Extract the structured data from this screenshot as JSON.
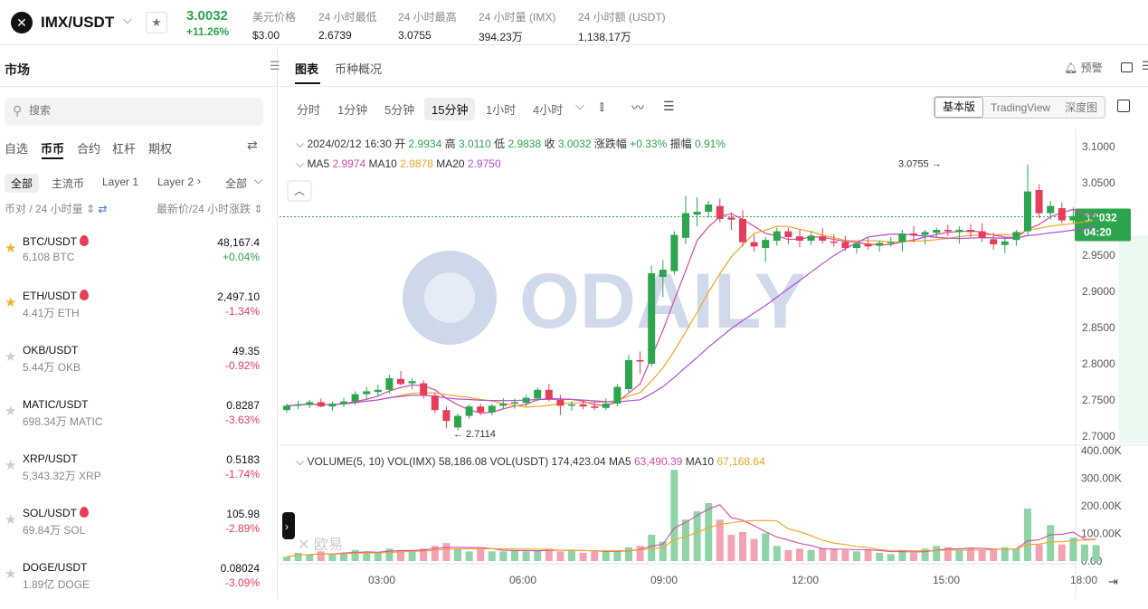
{
  "header": {
    "logo_text": "✕",
    "pair": "IMX/USDT",
    "last_price": "3.0032",
    "change_pct": "+11.26%",
    "stats": [
      {
        "key": "美元价格",
        "value": "$3.00"
      },
      {
        "key": "24 小时最低",
        "value": "2.6739"
      },
      {
        "key": "24 小时最高",
        "value": "3.0755"
      },
      {
        "key": "24 小时量 (IMX)",
        "value": "394.23万"
      },
      {
        "key": "24 小时额 (USDT)",
        "value": "1,138.17万"
      }
    ],
    "colors": {
      "up": "#2da44e",
      "down": "#e53e5a"
    }
  },
  "sidebar": {
    "title": "市场",
    "search_placeholder": "搜索",
    "categories": [
      "自选",
      "币币",
      "合约",
      "杠杆",
      "期权"
    ],
    "active_category": "币币",
    "filters": [
      "全部",
      "主流币",
      "Layer 1",
      "Layer 2"
    ],
    "filter_dropdown": "全部",
    "col_left": "币对 / 24 小时量",
    "col_right": "最新价/24 小时涨跌",
    "rows": [
      {
        "pair": "BTC/USDT",
        "hot": true,
        "favorite": true,
        "volume": "6,108 BTC",
        "price": "48,167.4",
        "change": "+0.04%",
        "dir": "up"
      },
      {
        "pair": "ETH/USDT",
        "hot": true,
        "favorite": true,
        "volume": "4.41万 ETH",
        "price": "2,497.10",
        "change": "-1.34%",
        "dir": "down"
      },
      {
        "pair": "OKB/USDT",
        "hot": false,
        "favorite": false,
        "volume": "5.44万 OKB",
        "price": "49.35",
        "change": "-0.92%",
        "dir": "down"
      },
      {
        "pair": "MATIC/USDT",
        "hot": false,
        "favorite": false,
        "volume": "698.34万 MATIC",
        "price": "0.8287",
        "change": "-3.63%",
        "dir": "down"
      },
      {
        "pair": "XRP/USDT",
        "hot": false,
        "favorite": false,
        "volume": "5,343.32万 XRP",
        "price": "0.5183",
        "change": "-1.74%",
        "dir": "down"
      },
      {
        "pair": "SOL/USDT",
        "hot": true,
        "favorite": false,
        "volume": "69.84万 SOL",
        "price": "105.98",
        "change": "-2.89%",
        "dir": "down"
      },
      {
        "pair": "DOGE/USDT",
        "hot": false,
        "favorite": false,
        "volume": "1.89亿 DOGE",
        "price": "0.08024",
        "change": "-3.09%",
        "dir": "down"
      }
    ]
  },
  "main": {
    "tabs": [
      "图表",
      "币种概况"
    ],
    "alert_label": "预警",
    "timeframes": [
      "分时",
      "1分钟",
      "5分钟",
      "15分钟",
      "1小时",
      "4小时"
    ],
    "active_timeframe": "15分钟",
    "views": [
      "基本版",
      "TradingView",
      "深度图"
    ],
    "active_view": "基本版"
  },
  "chart_data": {
    "type": "candlestick",
    "ohlc_info": {
      "date": "2024/02/12 16:30",
      "open_label": "开",
      "open": "2.9934",
      "high_label": "高",
      "high": "3.0110",
      "low_label": "低",
      "low": "2.9838",
      "close_label": "收",
      "close": "3.0032",
      "change_label": "涨跌幅",
      "change": "+0.33%",
      "amplitude_label": "振幅",
      "amplitude": "0.91%"
    },
    "ma_info": {
      "ma5_label": "MA5",
      "ma5": "2.9974",
      "ma10_label": "MA10",
      "ma10": "2.9878",
      "ma20_label": "MA20",
      "ma20": "2.9750"
    },
    "volume_info": {
      "title": "VOLUME(5, 10)",
      "vol_imx_label": "VOL(IMX)",
      "vol_imx": "58,186.08",
      "vol_usdt_label": "VOL(USDT)",
      "vol_usdt": "174,423.04",
      "ma5_label": "MA5",
      "ma5": "63,490.39",
      "ma10_label": "MA10",
      "ma10": "67,168.64"
    },
    "price_axis": [
      "3.1000",
      "3.0500",
      "3.0000",
      "2.9500",
      "2.9000",
      "2.8500",
      "2.8000",
      "2.7500",
      "2.7000"
    ],
    "price_range": [
      2.69,
      3.125
    ],
    "volume_axis": [
      "400.00K",
      "300.00K",
      "200.00K",
      "100.00K",
      "0.00"
    ],
    "volume_max": 400000,
    "time_axis": [
      "03:00",
      "06:00",
      "09:00",
      "12:00",
      "15:00",
      "18:00"
    ],
    "current_price_tag": "3.0032",
    "countdown": "04:20",
    "high_marker": "3.0755",
    "low_marker": "2.7114",
    "candles": [
      [
        2.736,
        2.745,
        2.732,
        2.742
      ],
      [
        2.742,
        2.749,
        2.737,
        2.744
      ],
      [
        2.743,
        2.75,
        2.739,
        2.747
      ],
      [
        2.747,
        2.752,
        2.74,
        2.741
      ],
      [
        2.741,
        2.748,
        2.735,
        2.745
      ],
      [
        2.745,
        2.753,
        2.74,
        2.748
      ],
      [
        2.748,
        2.762,
        2.743,
        2.758
      ],
      [
        2.758,
        2.768,
        2.751,
        2.762
      ],
      [
        2.761,
        2.771,
        2.755,
        2.764
      ],
      [
        2.764,
        2.785,
        2.759,
        2.78
      ],
      [
        2.779,
        2.79,
        2.77,
        2.772
      ],
      [
        2.773,
        2.78,
        2.765,
        2.776
      ],
      [
        2.773,
        2.777,
        2.752,
        2.756
      ],
      [
        2.756,
        2.76,
        2.732,
        2.736
      ],
      [
        2.736,
        2.741,
        2.711,
        2.721
      ],
      [
        2.712,
        2.731,
        2.708,
        2.728
      ],
      [
        2.728,
        2.744,
        2.724,
        2.741
      ],
      [
        2.741,
        2.745,
        2.729,
        2.733
      ],
      [
        2.733,
        2.745,
        2.729,
        2.742
      ],
      [
        2.742,
        2.752,
        2.737,
        2.745
      ],
      [
        2.745,
        2.752,
        2.738,
        2.747
      ],
      [
        2.746,
        2.757,
        2.741,
        2.753
      ],
      [
        2.752,
        2.767,
        2.748,
        2.764
      ],
      [
        2.764,
        2.772,
        2.748,
        2.751
      ],
      [
        2.75,
        2.757,
        2.729,
        2.742
      ],
      [
        2.742,
        2.748,
        2.735,
        2.744
      ],
      [
        2.744,
        2.75,
        2.737,
        2.741
      ],
      [
        2.741,
        2.748,
        2.736,
        2.739
      ],
      [
        2.739,
        2.752,
        2.736,
        2.745
      ],
      [
        2.745,
        2.772,
        2.741,
        2.768
      ],
      [
        2.765,
        2.812,
        2.761,
        2.805
      ],
      [
        2.805,
        2.817,
        2.786,
        2.803
      ],
      [
        2.8,
        2.935,
        2.796,
        2.925
      ],
      [
        2.92,
        2.943,
        2.892,
        2.93
      ],
      [
        2.928,
        2.983,
        2.923,
        2.978
      ],
      [
        2.974,
        3.032,
        2.965,
        3.008
      ],
      [
        3.006,
        3.03,
        2.99,
        3.01
      ],
      [
        3.01,
        3.025,
        3.002,
        3.02
      ],
      [
        3.018,
        3.028,
        2.995,
        3.0
      ],
      [
        3.002,
        3.009,
        2.985,
        2.999
      ],
      [
        3.0,
        3.012,
        2.962,
        2.968
      ],
      [
        2.968,
        2.978,
        2.955,
        2.962
      ],
      [
        2.96,
        2.975,
        2.941,
        2.971
      ],
      [
        2.97,
        2.988,
        2.963,
        2.983
      ],
      [
        2.983,
        2.988,
        2.965,
        2.975
      ],
      [
        2.976,
        2.985,
        2.961,
        2.97
      ],
      [
        2.97,
        2.983,
        2.964,
        2.977
      ],
      [
        2.976,
        2.988,
        2.966,
        2.97
      ],
      [
        2.969,
        2.979,
        2.962,
        2.967
      ],
      [
        2.968,
        2.977,
        2.956,
        2.96
      ],
      [
        2.96,
        2.968,
        2.952,
        2.966
      ],
      [
        2.966,
        2.974,
        2.958,
        2.962
      ],
      [
        2.963,
        2.97,
        2.955,
        2.967
      ],
      [
        2.966,
        2.975,
        2.962,
        2.968
      ],
      [
        2.968,
        2.985,
        2.955,
        2.98
      ],
      [
        2.98,
        2.99,
        2.968,
        2.978
      ],
      [
        2.978,
        2.985,
        2.965,
        2.982
      ],
      [
        2.981,
        2.988,
        2.974,
        2.985
      ],
      [
        2.985,
        2.992,
        2.976,
        2.983
      ],
      [
        2.982,
        2.99,
        2.966,
        2.985
      ],
      [
        2.985,
        2.993,
        2.975,
        2.982
      ],
      [
        2.983,
        2.994,
        2.968,
        2.974
      ],
      [
        2.972,
        2.981,
        2.958,
        2.965
      ],
      [
        2.964,
        2.975,
        2.953,
        2.969
      ],
      [
        2.971,
        2.985,
        2.963,
        2.982
      ],
      [
        2.983,
        3.075,
        2.978,
        3.038
      ],
      [
        3.04,
        3.048,
        3.001,
        3.008
      ],
      [
        3.008,
        3.025,
        2.999,
        3.018
      ],
      [
        3.015,
        3.023,
        2.994,
        2.998
      ],
      [
        2.998,
        3.016,
        2.994,
        3.004
      ],
      [
        2.998,
        3.01,
        2.986,
        3.003
      ],
      [
        2.993,
        3.011,
        2.984,
        3.003
      ]
    ],
    "volumes": [
      15,
      30,
      25,
      35,
      25,
      30,
      40,
      35,
      30,
      45,
      40,
      40,
      45,
      55,
      65,
      45,
      35,
      45,
      35,
      35,
      40,
      35,
      40,
      45,
      35,
      40,
      30,
      35,
      35,
      35,
      50,
      55,
      95,
      70,
      330,
      150,
      180,
      210,
      150,
      95,
      105,
      80,
      100,
      55,
      40,
      45,
      40,
      45,
      45,
      40,
      35,
      40,
      30,
      25,
      40,
      30,
      45,
      55,
      50,
      40,
      45,
      40,
      40,
      50,
      45,
      190,
      60,
      130,
      60,
      85,
      60,
      58
    ]
  }
}
